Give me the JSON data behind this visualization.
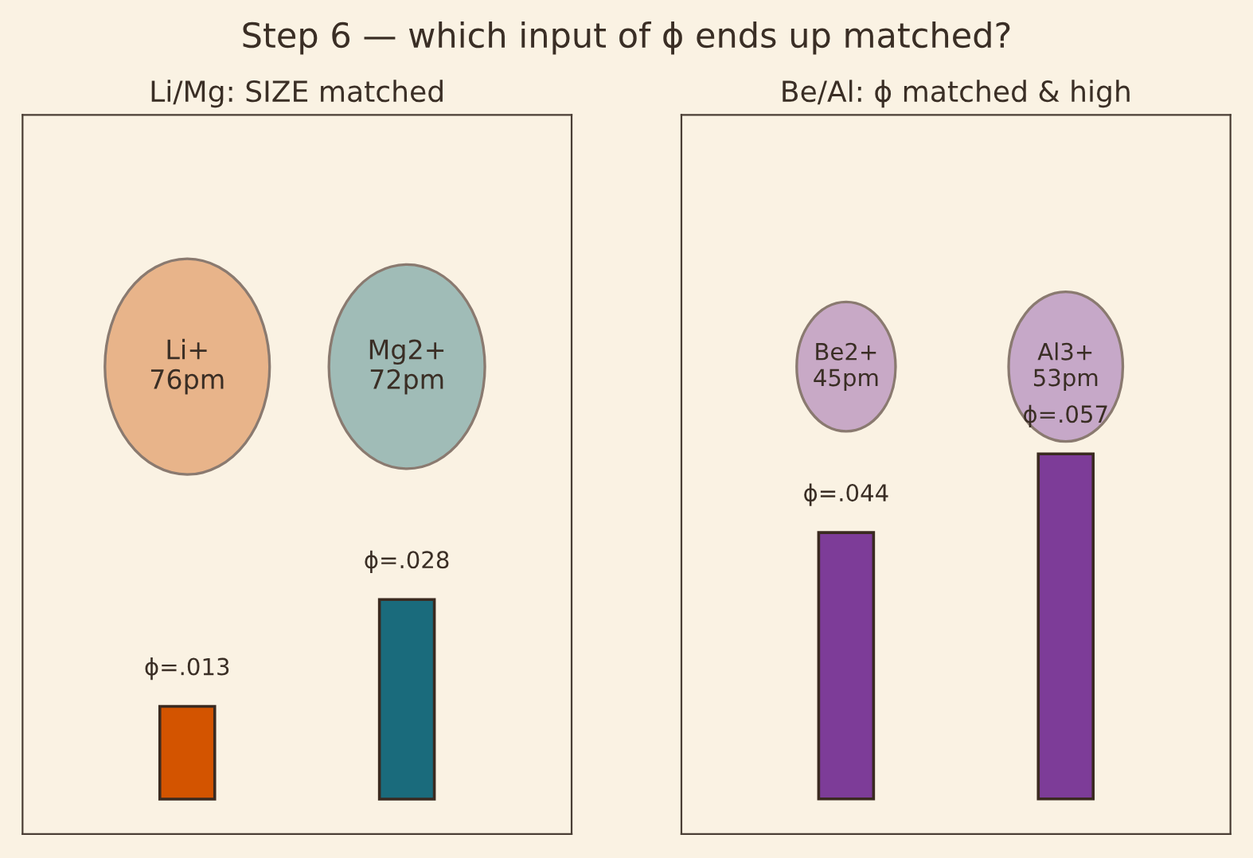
{
  "chart_data": [
    {
      "type": "bar",
      "title": "Step 6 — which input of ϕ ends up matched?",
      "subtitle": "Li/Mg: SIZE matched",
      "categories": [
        null,
        null
      ],
      "values": [
        0.013,
        0.028
      ],
      "colors": [
        "#d35400",
        "#1a6b7c"
      ],
      "value_labels": [
        "ϕ=.013",
        "ϕ=.028"
      ],
      "ylim": [
        -0.0049,
        0.096
      ],
      "annotations": [
        "Li+\n76pm",
        "Mg2+\n72pm"
      ]
    },
    {
      "type": "bar",
      "subtitle": "Be/Al: ϕ matched & high",
      "categories": [
        null,
        null
      ],
      "values": [
        0.044,
        0.057
      ],
      "colors": [
        "#7d3c98",
        "#7d3c98"
      ],
      "value_labels": [
        "ϕ=.044",
        "ϕ=.057"
      ],
      "ylim": [
        -0.0058,
        0.113
      ],
      "annotations": [
        "Be2+\n45pm",
        "Al3+\n53pm"
      ]
    }
  ]
}
